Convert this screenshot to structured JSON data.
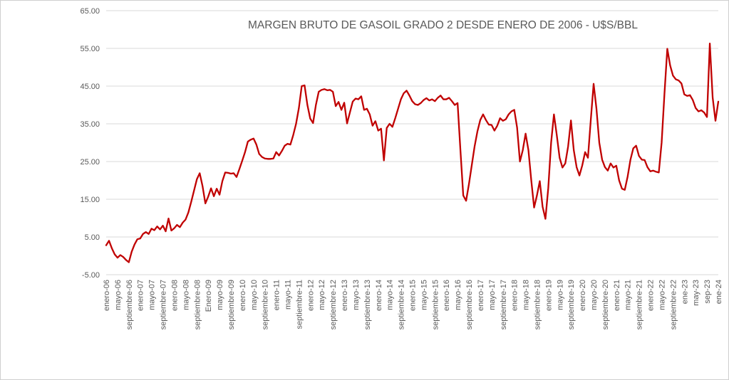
{
  "window": {
    "background_color": "#FFFFFF",
    "border_color": "#CFCFCF"
  },
  "chart_data": {
    "type": "line",
    "title": "MARGEN BRUTO DE GASOIL GRADO 2 DESDE ENERO DE 2006 - U$S/BBL",
    "series_color": "#C00000",
    "gridline_color": "#D9D9D9",
    "axis_text_color": "#595959",
    "grid": true,
    "legend": "none",
    "ylim": [
      -5,
      65
    ],
    "y_ticks": [
      "65.00",
      "55.00",
      "45.00",
      "35.00",
      "25.00",
      "15.00",
      "5.00",
      "-5.00"
    ],
    "y_tick_values": [
      65,
      55,
      45,
      35,
      25,
      15,
      5,
      -5
    ],
    "x_frequency": "monthly",
    "x_tick_every_n_months": 4,
    "x_tick_labels": [
      "enero-06",
      "mayo-06",
      "septiembre-06",
      "enero-07",
      "mayo-07",
      "septiembre-07",
      "enero-08",
      "mayo-08",
      "septiembre-08",
      "Enero-09",
      "mayo-09",
      "septiembre-09",
      "enero-10",
      "mayo-10",
      "septiembre-10",
      "enero-11",
      "mayo-11",
      "septiembre-11",
      "enero-12",
      "mayo-12",
      "septiembre-12",
      "enero-13",
      "mayo-13",
      "septiembre-13",
      "enero-14",
      "mayo-14",
      "septiembre-14",
      "enero-15",
      "mayo-15",
      "septiembre-15",
      "enero-16",
      "mayo-16",
      "septiembre-16",
      "enero-17",
      "mayo-17",
      "septiembre-17",
      "enero-18",
      "mayo-18",
      "septiembre-18",
      "enero-19",
      "mayo-19",
      "septiembre-19",
      "enero-20",
      "mayo-20",
      "septiembre-20",
      "enero-21",
      "mayo-21",
      "septiembre-21",
      "enero-22",
      "mayo-22",
      "septiembre-22",
      "ene-23",
      "may-23",
      "sep-23",
      "ene-24"
    ],
    "series": [
      {
        "name": "Margen bruto gasoil grado 2 (U$S/BBL)",
        "start": "enero-06",
        "end": "ene-24",
        "values": [
          2.8,
          4.0,
          2.0,
          0.4,
          -0.5,
          0.2,
          -0.3,
          -1.1,
          -1.7,
          1.1,
          3.0,
          4.4,
          4.6,
          5.8,
          6.3,
          5.8,
          7.2,
          6.8,
          7.8,
          7.0,
          8.0,
          6.5,
          9.9,
          6.7,
          7.3,
          8.2,
          7.6,
          8.8,
          9.6,
          11.5,
          14.3,
          17.3,
          20.3,
          21.9,
          18.5,
          13.9,
          15.7,
          17.9,
          15.8,
          17.8,
          16.2,
          19.8,
          22.1,
          22.0,
          21.8,
          21.9,
          20.9,
          23.0,
          25.2,
          27.5,
          30.3,
          30.8,
          31.1,
          29.5,
          27.0,
          26.2,
          25.8,
          25.7,
          25.7,
          25.8,
          27.5,
          26.6,
          27.8,
          29.2,
          29.7,
          29.5,
          32.0,
          35.0,
          39.2,
          45.0,
          45.2,
          40.0,
          36.4,
          35.2,
          40.0,
          43.5,
          44.0,
          44.2,
          43.9,
          44.0,
          43.5,
          39.7,
          40.8,
          38.7,
          40.6,
          35.1,
          38.0,
          40.9,
          41.7,
          41.5,
          42.3,
          38.7,
          39.0,
          37.5,
          34.5,
          35.7,
          33.2,
          33.7,
          25.3,
          33.9,
          35.0,
          34.2,
          36.5,
          39.0,
          41.5,
          43.1,
          43.8,
          42.5,
          41.0,
          40.2,
          40.0,
          40.5,
          41.3,
          41.8,
          41.2,
          41.5,
          41.0,
          41.9,
          42.5,
          41.5,
          41.5,
          41.9,
          41.0,
          40.0,
          40.5,
          28.0,
          16.0,
          14.6,
          19.0,
          24.0,
          29.0,
          33.0,
          36.0,
          37.5,
          36.0,
          34.8,
          34.7,
          33.2,
          34.5,
          36.5,
          35.8,
          36.2,
          37.5,
          38.3,
          38.7,
          34.0,
          25.0,
          28.0,
          32.4,
          28.0,
          20.0,
          12.8,
          16.0,
          19.8,
          13.0,
          9.8,
          18.0,
          30.0,
          37.5,
          32.0,
          26.0,
          23.4,
          24.5,
          29.0,
          35.9,
          28.0,
          23.5,
          21.3,
          24.0,
          27.5,
          26.0,
          36.0,
          45.6,
          39.0,
          30.0,
          25.5,
          23.5,
          22.6,
          24.5,
          23.4,
          23.9,
          20.0,
          17.8,
          17.5,
          21.0,
          25.5,
          28.5,
          29.2,
          26.5,
          25.5,
          25.4,
          23.5,
          22.4,
          22.6,
          22.3,
          22.1,
          30.0,
          43.0,
          54.9,
          50.5,
          47.8,
          46.8,
          46.5,
          45.7,
          42.8,
          42.4,
          42.6,
          41.3,
          39.2,
          38.3,
          38.6,
          38.0,
          36.8,
          56.3,
          42.0,
          35.8,
          40.9
        ]
      }
    ]
  }
}
